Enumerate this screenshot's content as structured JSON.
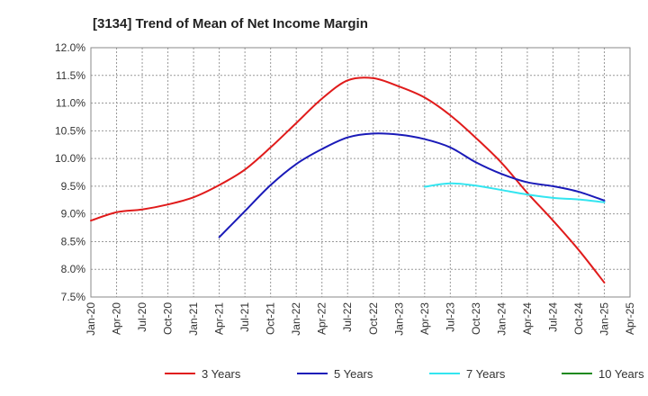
{
  "chart_data": {
    "type": "line",
    "title": "[3134]  Trend of Mean of Net Income Margin",
    "xlabel": "",
    "ylabel": "",
    "x_ticks": [
      "Jan-20",
      "Apr-20",
      "Jul-20",
      "Oct-20",
      "Jan-21",
      "Apr-21",
      "Jul-21",
      "Oct-21",
      "Jan-22",
      "Apr-22",
      "Jul-22",
      "Oct-22",
      "Jan-23",
      "Apr-23",
      "Jul-23",
      "Oct-23",
      "Jan-24",
      "Apr-24",
      "Jul-24",
      "Oct-24",
      "Jan-25",
      "Apr-25"
    ],
    "y_ticks": [
      "12.0%",
      "11.5%",
      "11.0%",
      "10.5%",
      "10.0%",
      "9.5%",
      "9.0%",
      "8.5%",
      "8.0%",
      "7.5%"
    ],
    "ylim": [
      7.5,
      12.0
    ],
    "grid": true,
    "legend_position": "bottom",
    "series": [
      {
        "name": "3 Years",
        "color": "#e01b1b",
        "x": [
          "Jan-20",
          "Apr-20",
          "Jul-20",
          "Oct-20",
          "Jan-21",
          "Apr-21",
          "Jul-21",
          "Oct-21",
          "Jan-22",
          "Apr-22",
          "Jul-22",
          "Oct-22",
          "Jan-23",
          "Apr-23",
          "Jul-23",
          "Oct-23",
          "Jan-24",
          "Apr-24",
          "Jul-24",
          "Oct-24",
          "Jan-25"
        ],
        "values": [
          8.88,
          9.03,
          9.08,
          9.17,
          9.3,
          9.52,
          9.8,
          10.2,
          10.64,
          11.08,
          11.41,
          11.45,
          11.3,
          11.1,
          10.78,
          10.37,
          9.92,
          9.38,
          8.88,
          8.35,
          7.76
        ]
      },
      {
        "name": "5 Years",
        "color": "#1a1ab8",
        "x": [
          "Apr-21",
          "Jul-21",
          "Oct-21",
          "Jan-22",
          "Apr-22",
          "Jul-22",
          "Oct-22",
          "Jan-23",
          "Apr-23",
          "Jul-23",
          "Oct-23",
          "Jan-24",
          "Apr-24",
          "Jul-24",
          "Oct-24",
          "Jan-25"
        ],
        "values": [
          8.58,
          9.05,
          9.52,
          9.9,
          10.17,
          10.38,
          10.45,
          10.43,
          10.35,
          10.2,
          9.93,
          9.72,
          9.57,
          9.5,
          9.4,
          9.24
        ]
      },
      {
        "name": "7 Years",
        "color": "#33e5f0",
        "x": [
          "Apr-23",
          "Jul-23",
          "Oct-23",
          "Jan-24",
          "Apr-24",
          "Jul-24",
          "Oct-24",
          "Jan-25"
        ],
        "values": [
          9.49,
          9.55,
          9.51,
          9.43,
          9.35,
          9.29,
          9.26,
          9.21
        ]
      },
      {
        "name": "10 Years",
        "color": "#1f8a1f",
        "x": [],
        "values": []
      }
    ]
  }
}
